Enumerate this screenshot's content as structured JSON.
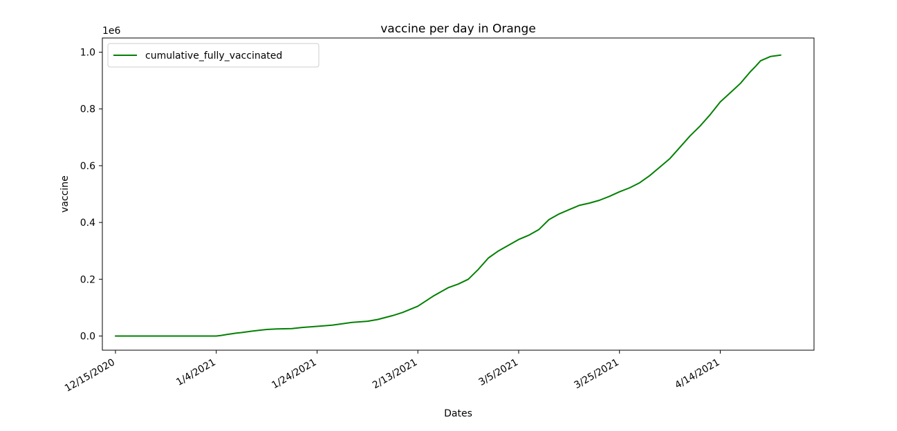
{
  "chart_data": {
    "type": "line",
    "title": "vaccine per day in Orange",
    "xlabel": "Dates",
    "ylabel": "vaccine",
    "y_offset_label": "1e6",
    "x_tick_labels": [
      "12/15/2020",
      "1/4/2021",
      "1/24/2021",
      "2/13/2021",
      "3/5/2021",
      "3/25/2021",
      "4/14/2021"
    ],
    "y_tick_labels": [
      "0.0",
      "0.2",
      "0.4",
      "0.6",
      "0.8",
      "1.0"
    ],
    "x_tick_values": [
      0,
      20,
      40,
      60,
      80,
      100,
      120
    ],
    "y_tick_values": [
      0,
      200000,
      400000,
      600000,
      800000,
      1000000
    ],
    "xlim": [
      -2.6,
      138.6
    ],
    "ylim": [
      -50000,
      1050000
    ],
    "grid": false,
    "legend_position": "top-left",
    "series": [
      {
        "name": "cumulative_fully_vaccinated",
        "color": "#008000",
        "x": [
          0,
          5,
          10,
          15,
          18,
          20,
          21,
          22,
          24,
          25,
          27,
          30,
          32,
          35,
          37,
          40,
          43,
          45,
          47,
          50,
          52,
          55,
          57,
          60,
          63,
          66,
          68,
          70,
          72,
          74,
          76,
          78,
          80,
          82,
          84,
          86,
          88,
          90,
          92,
          94,
          96,
          98,
          100,
          102,
          104,
          106,
          108,
          110,
          112,
          114,
          116,
          118,
          120,
          122,
          124,
          126,
          127,
          128,
          130,
          132
        ],
        "y": [
          0,
          0,
          0,
          0,
          0,
          0,
          2000,
          5000,
          10000,
          12000,
          17000,
          23000,
          25000,
          26000,
          30000,
          34000,
          38000,
          43000,
          48000,
          52000,
          58000,
          72000,
          83000,
          105000,
          140000,
          170000,
          183000,
          200000,
          235000,
          275000,
          300000,
          320000,
          340000,
          355000,
          375000,
          410000,
          430000,
          445000,
          460000,
          468000,
          478000,
          492000,
          508000,
          522000,
          540000,
          565000,
          595000,
          625000,
          665000,
          705000,
          740000,
          780000,
          825000,
          857000,
          890000,
          932000,
          950000,
          970000,
          985000,
          990000
        ]
      }
    ]
  }
}
